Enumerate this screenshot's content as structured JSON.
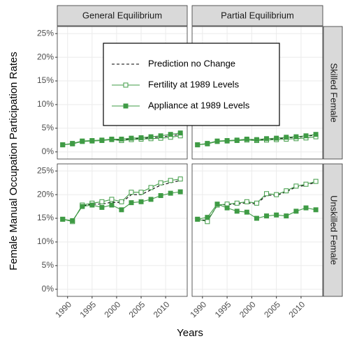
{
  "x_label": "Years",
  "y_label": "Female Manual Occupation Participation Rates",
  "facets": {
    "columns": [
      "General Equilibrium",
      "Partial Equilibrium"
    ],
    "rows": [
      "Skilled Female",
      "Unskilled Female"
    ]
  },
  "chart_data": [
    {
      "type": "line",
      "x": [
        1989,
        1991,
        1993,
        1995,
        1997,
        1999,
        2001,
        2003,
        2005,
        2007,
        2009,
        2011,
        2013
      ],
      "xlim": [
        1987.9,
        2014.4
      ],
      "xticks": [
        1990,
        1995,
        2000,
        2005,
        2010
      ],
      "ylim": [
        -1.5,
        26.5
      ],
      "yticks": [
        {
          "value": 0,
          "label": "0%"
        },
        {
          "value": 5,
          "label": "5%"
        },
        {
          "value": 10,
          "label": "10%"
        },
        {
          "value": 15,
          "label": "15%"
        },
        {
          "value": 20,
          "label": "20%"
        },
        {
          "value": 25,
          "label": "25%"
        }
      ],
      "grid": true,
      "series": [
        {
          "name": "Prediction no Change",
          "color": "#000000",
          "linetype": "dashed",
          "marker": "none",
          "values": [
            1.5,
            1.75,
            2.25,
            2.35,
            2.45,
            2.65,
            2.55,
            2.75,
            2.85,
            3.0,
            3.15,
            3.4,
            3.7
          ]
        },
        {
          "name": "Fertility at 1989 Levels",
          "color": "#3f9b45",
          "linetype": "solid",
          "marker": "open-square",
          "values": [
            1.5,
            1.7,
            2.2,
            2.3,
            2.4,
            2.6,
            2.4,
            2.6,
            2.7,
            2.8,
            2.9,
            3.1,
            3.4
          ]
        },
        {
          "name": "Appliance at 1989 Levels",
          "color": "#3f9b45",
          "linetype": "solid",
          "marker": "filled-square",
          "values": [
            1.5,
            1.8,
            2.3,
            2.4,
            2.5,
            2.7,
            2.7,
            2.9,
            3.0,
            3.2,
            3.4,
            3.7,
            4.0
          ]
        }
      ]
    },
    {
      "type": "line",
      "x": [
        1989,
        1991,
        1993,
        1995,
        1997,
        1999,
        2001,
        2003,
        2005,
        2007,
        2009,
        2011,
        2013
      ],
      "xlim": [
        1987.9,
        2014.4
      ],
      "xticks": [
        1990,
        1995,
        2000,
        2005,
        2010
      ],
      "ylim": [
        -1.5,
        26.5
      ],
      "yticks": [
        {
          "value": 0,
          "label": "0%"
        },
        {
          "value": 5,
          "label": "5%"
        },
        {
          "value": 10,
          "label": "10%"
        },
        {
          "value": 15,
          "label": "15%"
        },
        {
          "value": 20,
          "label": "20%"
        },
        {
          "value": 25,
          "label": "25%"
        }
      ],
      "grid": true,
      "series": [
        {
          "name": "Prediction no Change",
          "color": "#000000",
          "linetype": "dashed",
          "marker": "none",
          "values": [
            1.5,
            1.75,
            2.25,
            2.35,
            2.45,
            2.6,
            2.5,
            2.7,
            2.8,
            2.95,
            3.1,
            3.3,
            3.55
          ]
        },
        {
          "name": "Fertility at 1989 Levels",
          "color": "#3f9b45",
          "linetype": "solid",
          "marker": "open-square",
          "values": [
            1.5,
            1.7,
            2.2,
            2.3,
            2.4,
            2.5,
            2.4,
            2.5,
            2.6,
            2.7,
            2.8,
            2.95,
            3.2
          ]
        },
        {
          "name": "Appliance at 1989 Levels",
          "color": "#3f9b45",
          "linetype": "solid",
          "marker": "filled-square",
          "values": [
            1.5,
            1.8,
            2.3,
            2.4,
            2.5,
            2.7,
            2.6,
            2.8,
            2.9,
            3.1,
            3.2,
            3.4,
            3.7
          ]
        }
      ]
    },
    {
      "type": "line",
      "x": [
        1989,
        1991,
        1993,
        1995,
        1997,
        1999,
        2001,
        2003,
        2005,
        2007,
        2009,
        2011,
        2013
      ],
      "xlim": [
        1987.9,
        2014.4
      ],
      "xticks": [
        1990,
        1995,
        2000,
        2005,
        2010
      ],
      "ylim": [
        -1.5,
        26.5
      ],
      "yticks": [
        {
          "value": 0,
          "label": "0%"
        },
        {
          "value": 5,
          "label": "5%"
        },
        {
          "value": 10,
          "label": "10%"
        },
        {
          "value": 15,
          "label": "15%"
        },
        {
          "value": 20,
          "label": "20%"
        },
        {
          "value": 25,
          "label": "25%"
        }
      ],
      "grid": true,
      "series": [
        {
          "name": "Prediction no Change",
          "color": "#000000",
          "linetype": "dashed",
          "marker": "none",
          "values": [
            14.8,
            14.4,
            17.6,
            18.0,
            18.0,
            18.4,
            18.3,
            20.0,
            20.0,
            21.0,
            22.0,
            22.5,
            23.0
          ]
        },
        {
          "name": "Fertility at 1989 Levels",
          "color": "#3f9b45",
          "linetype": "solid",
          "marker": "open-square",
          "values": [
            14.8,
            14.3,
            17.8,
            18.2,
            18.5,
            19.0,
            18.5,
            20.5,
            20.5,
            21.5,
            22.5,
            23.0,
            23.3
          ]
        },
        {
          "name": "Appliance at 1989 Levels",
          "color": "#3f9b45",
          "linetype": "solid",
          "marker": "filled-square",
          "values": [
            14.8,
            14.5,
            17.5,
            17.8,
            17.3,
            17.8,
            16.8,
            18.3,
            18.5,
            19.0,
            19.8,
            20.3,
            20.6
          ]
        }
      ]
    },
    {
      "type": "line",
      "x": [
        1989,
        1991,
        1993,
        1995,
        1997,
        1999,
        2001,
        2003,
        2005,
        2007,
        2009,
        2011,
        2013
      ],
      "xlim": [
        1987.9,
        2014.4
      ],
      "xticks": [
        1990,
        1995,
        2000,
        2005,
        2010
      ],
      "ylim": [
        -1.5,
        26.5
      ],
      "yticks": [
        {
          "value": 0,
          "label": "0%"
        },
        {
          "value": 5,
          "label": "5%"
        },
        {
          "value": 10,
          "label": "10%"
        },
        {
          "value": 15,
          "label": "15%"
        },
        {
          "value": 20,
          "label": "20%"
        },
        {
          "value": 25,
          "label": "25%"
        }
      ],
      "grid": true,
      "series": [
        {
          "name": "Prediction no Change",
          "color": "#000000",
          "linetype": "dashed",
          "marker": "none",
          "values": [
            14.8,
            14.5,
            17.7,
            17.9,
            18.0,
            18.3,
            18.0,
            19.9,
            19.8,
            20.6,
            21.6,
            22.0,
            22.6
          ]
        },
        {
          "name": "Fertility at 1989 Levels",
          "color": "#3f9b45",
          "linetype": "solid",
          "marker": "open-square",
          "values": [
            14.8,
            14.3,
            17.8,
            18.0,
            18.2,
            18.5,
            18.2,
            20.2,
            20.0,
            20.8,
            21.8,
            22.2,
            22.8
          ]
        },
        {
          "name": "Appliance at 1989 Levels",
          "color": "#3f9b45",
          "linetype": "solid",
          "marker": "filled-square",
          "values": [
            14.8,
            15.2,
            18.0,
            17.2,
            16.5,
            16.3,
            15.0,
            15.5,
            15.7,
            15.5,
            16.5,
            17.2,
            16.8
          ]
        }
      ]
    }
  ]
}
